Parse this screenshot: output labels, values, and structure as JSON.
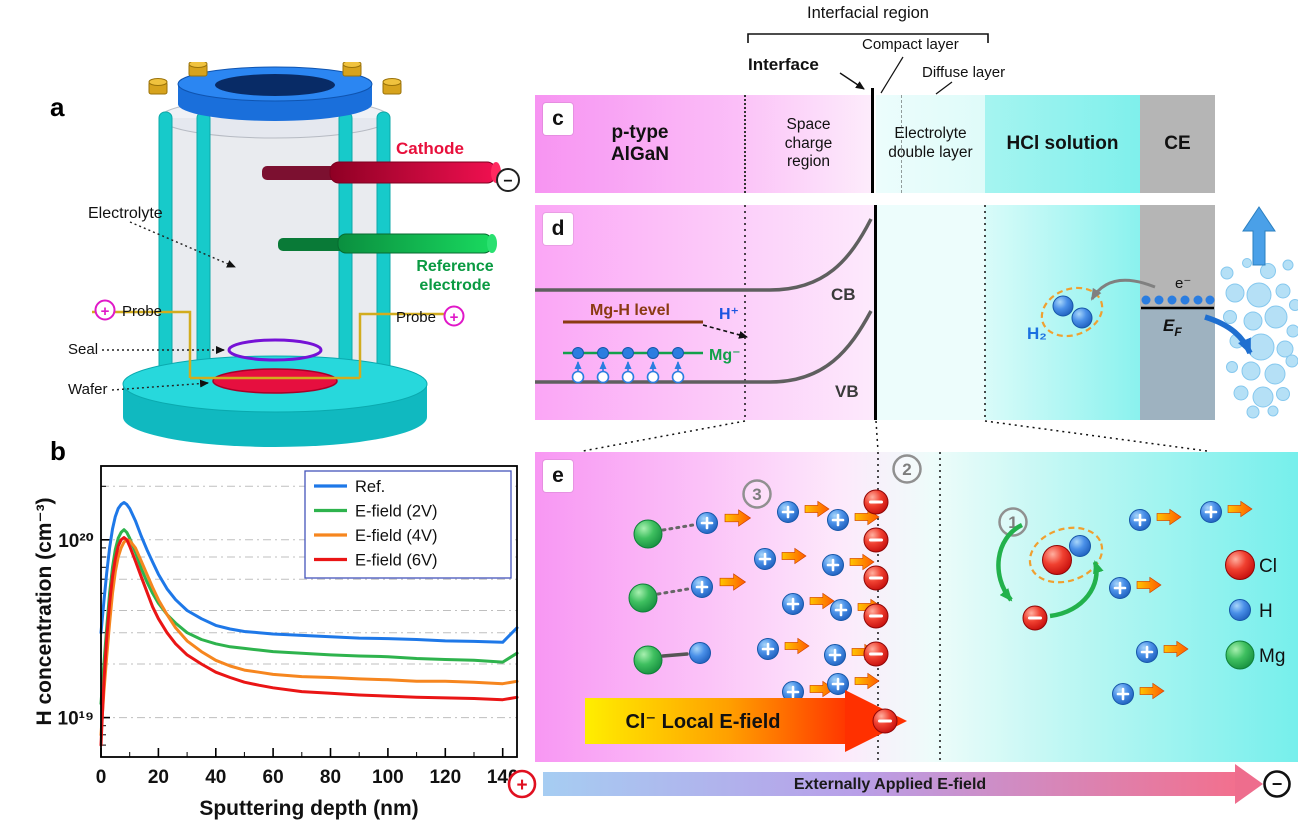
{
  "panel_labels": {
    "a": "a",
    "b": "b",
    "c": "c",
    "d": "d",
    "e": "e"
  },
  "apparatus": {
    "electrolyte": "Electrolyte",
    "cathode": "Cathode",
    "reference_line1": "Reference",
    "reference_line2": "electrode",
    "probe": "Probe",
    "seal": "Seal",
    "wafer": "Wafer",
    "cathode_terminal": "−",
    "probe_symbol": "+"
  },
  "chart_data": {
    "type": "line",
    "xlabel": "Sputtering depth (nm)",
    "ylabel": "H concentration (cm⁻³)",
    "yscale": "log",
    "xlim": [
      0,
      145
    ],
    "ylim": [
      6e+18,
      2.6e+20
    ],
    "xticks": [
      0,
      20,
      40,
      60,
      80,
      100,
      120,
      140
    ],
    "yticks": [
      {
        "v": 1e+19,
        "label": "10¹⁹"
      },
      {
        "v": 1e+20,
        "label": "10²⁰"
      }
    ],
    "gridlines": [
      1e+19,
      2e+19,
      3e+19,
      4e+19,
      6e+19,
      8e+19,
      1e+20,
      2e+20
    ],
    "legend_position": "top-right",
    "grid": "dash-dot horizontal",
    "x": [
      0,
      1,
      2,
      3,
      4,
      5,
      6,
      7,
      8,
      9,
      10,
      12,
      14,
      16,
      18,
      20,
      23,
      26,
      30,
      35,
      40,
      45,
      50,
      55,
      60,
      70,
      80,
      90,
      100,
      110,
      120,
      130,
      140,
      145
    ],
    "series": [
      {
        "name": "Ref.",
        "color": "#1e78e8",
        "values": [
          3e+19,
          4.5e+19,
          6.5e+19,
          9e+19,
          1.15e+20,
          1.35e+20,
          1.5e+20,
          1.58e+20,
          1.62e+20,
          1.58e+20,
          1.5e+20,
          1.28e+20,
          1.05e+20,
          8.8e+19,
          7.5e+19,
          6.4e+19,
          5.3e+19,
          4.6e+19,
          4e+19,
          3.6e+19,
          3.3e+19,
          3.15e+19,
          3.05e+19,
          3e+19,
          2.95e+19,
          2.9e+19,
          2.85e+19,
          2.8e+19,
          2.78e+19,
          2.75e+19,
          2.7e+19,
          2.68e+19,
          2.65e+19,
          3.2e+19
        ]
      },
      {
        "name": "E-field (2V)",
        "color": "#2eb34d",
        "values": [
          1.2e+19,
          2e+19,
          3.2e+19,
          5e+19,
          7e+19,
          8.8e+19,
          1.02e+20,
          1.1e+20,
          1.14e+20,
          1.1e+20,
          1.02e+20,
          8.5e+19,
          6.9e+19,
          5.8e+19,
          5e+19,
          4.4e+19,
          3.8e+19,
          3.4e+19,
          3e+19,
          2.75e+19,
          2.6e+19,
          2.5e+19,
          2.45e+19,
          2.4e+19,
          2.35e+19,
          2.3e+19,
          2.25e+19,
          2.22e+19,
          2.2e+19,
          2.15e+19,
          2.12e+19,
          2.1e+19,
          2.05e+19,
          2.3e+19
        ]
      },
      {
        "name": "E-field (4V)",
        "color": "#f6861f",
        "values": [
          8e+18,
          1.4e+19,
          2.2e+19,
          3.4e+19,
          5e+19,
          6.6e+19,
          8e+19,
          9e+19,
          9.7e+19,
          1e+20,
          9.9e+19,
          9e+19,
          7.6e+19,
          6.4e+19,
          5.4e+19,
          4.6e+19,
          3.8e+19,
          3.2e+19,
          2.7e+19,
          2.35e+19,
          2.1e+19,
          1.95e+19,
          1.85e+19,
          1.8e+19,
          1.75e+19,
          1.7e+19,
          1.68e+19,
          1.65e+19,
          1.63e+19,
          1.6e+19,
          1.6e+19,
          1.58e+19,
          1.55e+19,
          1.6e+19
        ]
      },
      {
        "name": "E-field (6V)",
        "color": "#ea1515",
        "values": [
          7e+18,
          1.6e+19,
          2.8e+19,
          4.4e+19,
          6.2e+19,
          7.8e+19,
          9.2e+19,
          1e+20,
          1.03e+20,
          1e+20,
          9.2e+19,
          7.6e+19,
          6.2e+19,
          5.1e+19,
          4.2e+19,
          3.6e+19,
          3e+19,
          2.6e+19,
          2.25e+19,
          2e+19,
          1.8e+19,
          1.68e+19,
          1.58e+19,
          1.52e+19,
          1.47e+19,
          1.4e+19,
          1.37e+19,
          1.34e+19,
          1.32e+19,
          1.3e+19,
          1.29e+19,
          1.28e+19,
          1.26e+19,
          1.3e+19
        ]
      }
    ]
  },
  "interfacial": {
    "region": "Interfacial region",
    "interface": "Interface",
    "compact": "Compact layer",
    "diffuse": "Diffuse layer"
  },
  "layers": {
    "semiconductor": "p-type AlGaN",
    "space_charge": "Space charge region",
    "double_layer": "Electrolyte double layer",
    "solution": "HCl solution",
    "counter_electrode": "CE"
  },
  "band": {
    "cb": "CB",
    "vb": "VB",
    "mgh": "Mg-H level",
    "h_plus": "H⁺",
    "mg_minus": "Mg⁻",
    "h2": "H₂",
    "electron": "e⁻",
    "fermi_e": "E",
    "fermi_sub": "F"
  },
  "mechanism": {
    "step_1": "1",
    "step_2": "2",
    "step_3": "3",
    "local_field_label": "Cl⁻ Local E-field",
    "species": {
      "cl": "Cl",
      "h": "H",
      "mg": "Mg"
    }
  },
  "external_field": {
    "label": "Externally Applied E-field",
    "anode": "+",
    "cathode": "−"
  },
  "colors": {
    "algan_pink": "#f996f3",
    "hcl_cyan": "#7ff0ec",
    "ce_gray": "#b5b5b5",
    "h_ion_blue": "#2b7de0",
    "cl_ion_red": "#d81010",
    "mg_green": "#18a348",
    "local_field_yellow": "#ffee00",
    "local_field_red": "#ff3800"
  }
}
